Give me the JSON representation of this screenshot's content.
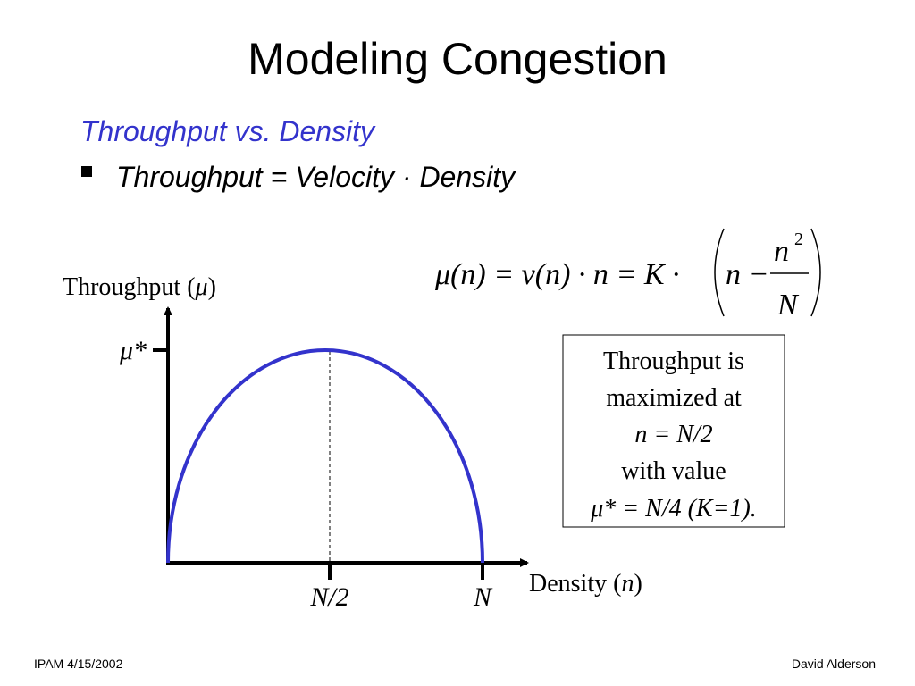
{
  "title": "Modeling Congestion",
  "subtitle": "Throughput vs. Density",
  "bullet": "Throughput = Velocity · Density",
  "formula": {
    "lhs": "μ(n) = v(n) · n = K ·",
    "inner": "n −",
    "numerator": "n",
    "exponent": "2",
    "denominator": "N"
  },
  "diagram": {
    "y_label": [
      "Throughput (",
      "μ",
      ")"
    ],
    "x_label": [
      "Density (",
      "n",
      ")"
    ],
    "peak_label": "μ*",
    "mid_label": "N/2",
    "end_label": "N"
  },
  "note": [
    "Throughput is",
    "maximized at",
    "n = N/2",
    "with value",
    "μ* = N/4 (K=1)."
  ],
  "footer": {
    "left": "IPAM 4/15/2002",
    "right": "David Alderson"
  }
}
